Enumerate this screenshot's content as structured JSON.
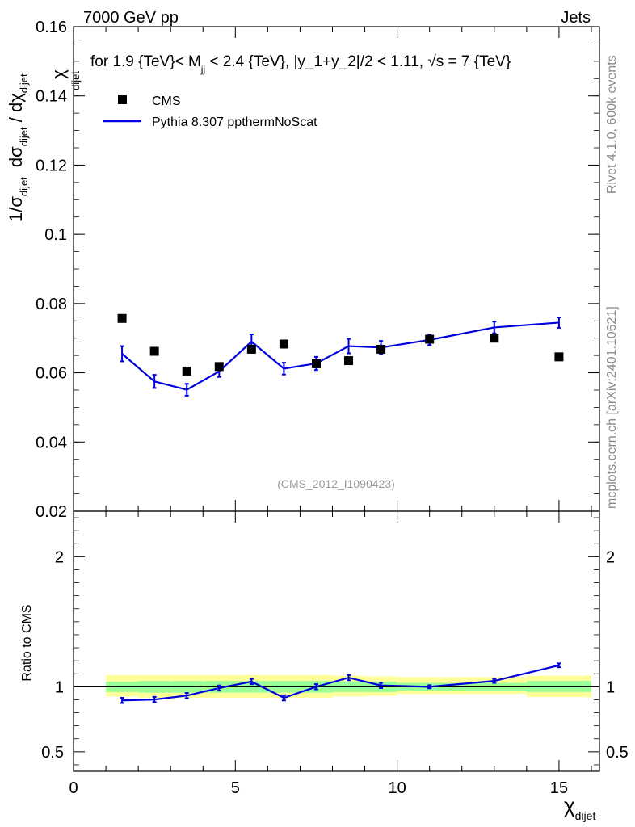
{
  "header": {
    "left": "7000 GeV pp",
    "right": "Jets"
  },
  "side_labels": {
    "rivet": "Rivet 4.1.0,  600k events",
    "mcplots": "mcplots.cern.ch [arXiv:2401.10621]"
  },
  "chart_data": {
    "type": "scatter",
    "title_prefix": "for 1.9 {TeV}< M",
    "title_sub": "jj",
    "title_suffix": " < 2.4 {TeV}, |y_1+y_2|/2 < 1.11, √s = 7 {TeV}",
    "watermark": "(CMS_2012_I1090423)",
    "ylabel_main": {
      "norm": "1/σ",
      "norm_sub": "dijet",
      "num": "dσ",
      "num_sub": "dijet",
      "den": " / dχ",
      "den_sub": "dijet",
      "chi": "χ",
      "chi_sub": "dijet"
    },
    "xlabel": {
      "main": "χ",
      "sub": "dijet"
    },
    "ylabel_ratio": "Ratio to CMS",
    "xlim": [
      0,
      16.25
    ],
    "ylim_main": [
      0.02,
      0.16
    ],
    "ylim_ratio": [
      0.35,
      2.35
    ],
    "x_ticks": [
      0,
      5,
      10,
      15
    ],
    "x_tick_labels": [
      "0",
      "5",
      "10",
      "15"
    ],
    "y_ticks_main": [
      0.02,
      0.04,
      0.06,
      0.08,
      0.1,
      0.12,
      0.14,
      0.16
    ],
    "y_tick_labels_main": [
      "0.02",
      "0.04",
      "0.06",
      "0.08",
      "0.1",
      "0.12",
      "0.14",
      "0.16"
    ],
    "y_ticks_ratio": [
      0.5,
      1,
      2
    ],
    "y_tick_labels_ratio": [
      "0.5",
      "1",
      "2"
    ],
    "legend": [
      {
        "name": "CMS",
        "marker": "square",
        "color": "#000000"
      },
      {
        "name": "Pythia 8.307 ppthermNoScat",
        "marker": "line",
        "color": "#0000dd"
      }
    ],
    "bins": [
      [
        1,
        2
      ],
      [
        2,
        3
      ],
      [
        3,
        4
      ],
      [
        4,
        5
      ],
      [
        5,
        6
      ],
      [
        6,
        7
      ],
      [
        7,
        8
      ],
      [
        8,
        9
      ],
      [
        9,
        10
      ],
      [
        10,
        12
      ],
      [
        12,
        14
      ],
      [
        14,
        16
      ]
    ],
    "cms": {
      "x": [
        1.5,
        2.5,
        3.5,
        4.5,
        5.5,
        6.5,
        7.5,
        8.5,
        9.5,
        11,
        13,
        15
      ],
      "y": [
        0.0757,
        0.0662,
        0.0605,
        0.0618,
        0.0668,
        0.0683,
        0.0626,
        0.0635,
        0.0668,
        0.0697,
        0.07,
        0.0646
      ]
    },
    "pythia": {
      "x": [
        1.5,
        2.5,
        3.5,
        4.5,
        5.5,
        6.5,
        7.5,
        8.5,
        9.5,
        11,
        13,
        15
      ],
      "y": [
        0.0655,
        0.0575,
        0.0551,
        0.0604,
        0.069,
        0.0612,
        0.0627,
        0.0677,
        0.0673,
        0.0695,
        0.0731,
        0.0745
      ],
      "err": [
        0.0022,
        0.0019,
        0.0017,
        0.0016,
        0.0021,
        0.0017,
        0.0019,
        0.0021,
        0.0019,
        0.0015,
        0.0017,
        0.0015
      ]
    },
    "ratio": {
      "y": [
        0.895,
        0.902,
        0.932,
        0.99,
        1.04,
        0.915,
        1.0,
        1.07,
        1.01,
        1.0,
        1.045,
        1.165
      ],
      "err": [
        0.02,
        0.02,
        0.02,
        0.02,
        0.02,
        0.02,
        0.02,
        0.02,
        0.02,
        0.012,
        0.015,
        0.015
      ]
    },
    "band_yellow": [
      [
        0.925,
        1.09
      ],
      [
        0.915,
        1.09
      ],
      [
        0.915,
        1.09
      ],
      [
        0.915,
        1.09
      ],
      [
        0.915,
        1.09
      ],
      [
        0.915,
        1.09
      ],
      [
        0.915,
        1.09
      ],
      [
        0.925,
        1.085
      ],
      [
        0.93,
        1.08
      ],
      [
        0.945,
        1.075
      ],
      [
        0.945,
        1.075
      ],
      [
        0.92,
        1.085
      ]
    ],
    "band_green": [
      [
        0.96,
        1.04
      ],
      [
        0.955,
        1.045
      ],
      [
        0.955,
        1.045
      ],
      [
        0.955,
        1.045
      ],
      [
        0.955,
        1.045
      ],
      [
        0.955,
        1.045
      ],
      [
        0.955,
        1.045
      ],
      [
        0.96,
        1.04
      ],
      [
        0.96,
        1.04
      ],
      [
        0.97,
        1.03
      ],
      [
        0.97,
        1.03
      ],
      [
        0.96,
        1.045
      ]
    ]
  },
  "colors": {
    "data": "#000000",
    "mc": "#0000dd",
    "band_yellow": "#ffff99",
    "band_green": "#99ff99",
    "watermark": "#999999",
    "side_text": "#888888"
  }
}
